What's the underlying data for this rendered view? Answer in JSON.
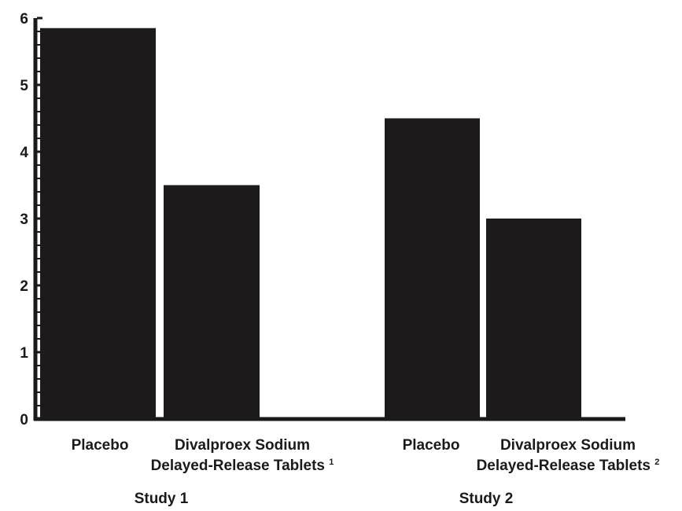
{
  "chart_data": {
    "type": "bar",
    "title": "",
    "xlabel": "",
    "ylabel": "",
    "ylim": [
      0,
      6
    ],
    "y_ticks": [
      "0",
      "1",
      "2",
      "3",
      "4",
      "5",
      "6"
    ],
    "grid": false,
    "legend": "none",
    "groups": [
      {
        "label": "Study 1",
        "bars": [
          {
            "label": "Placebo",
            "label_line2": "",
            "footnote": "",
            "value": 5.85
          },
          {
            "label": "Divalproex Sodium",
            "label_line2": "Delayed-Release Tablets",
            "footnote": "1",
            "value": 3.5
          }
        ]
      },
      {
        "label": "Study 2",
        "bars": [
          {
            "label": "Placebo",
            "label_line2": "",
            "footnote": "",
            "value": 4.5
          },
          {
            "label": "Divalproex Sodium",
            "label_line2": "Delayed-Release Tablets",
            "footnote": "2",
            "value": 3.0
          }
        ]
      }
    ],
    "colors": {
      "bar": "#1c1a1b",
      "axis": "#1a1a1a"
    }
  }
}
